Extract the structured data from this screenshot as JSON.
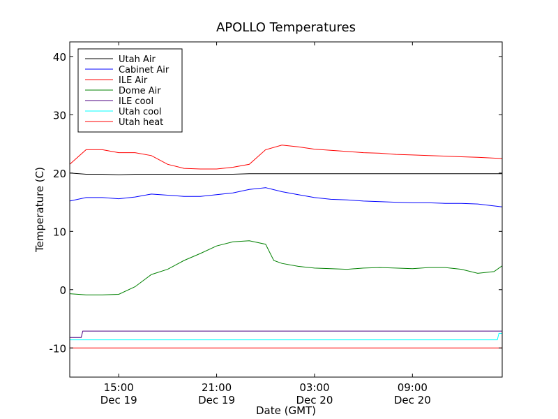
{
  "chart_data": {
    "type": "line",
    "title": "APOLLO Temperatures",
    "xlabel": "Date (GMT)",
    "ylabel": "Temperature (C)",
    "xlim": [
      12.0,
      38.5
    ],
    "ylim": [
      -15,
      42.5
    ],
    "yticks": [
      {
        "value": 40,
        "label": "40"
      },
      {
        "value": 30,
        "label": "30"
      },
      {
        "value": 20,
        "label": "20"
      },
      {
        "value": 10,
        "label": "10"
      },
      {
        "value": 0,
        "label": "0"
      },
      {
        "value": -10,
        "label": "-10"
      }
    ],
    "xticks": [
      {
        "value": 15,
        "label": "15:00",
        "sublabel": "Dec 19"
      },
      {
        "value": 21,
        "label": "21:00",
        "sublabel": "Dec 19"
      },
      {
        "value": 27,
        "label": "03:00",
        "sublabel": "Dec 20"
      },
      {
        "value": 33,
        "label": "09:00",
        "sublabel": "Dec 20"
      }
    ],
    "legend_position": "top-left",
    "series": [
      {
        "name": "Utah Air",
        "color": "#000000",
        "x": [
          12.0,
          13.0,
          14.0,
          15.0,
          16.0,
          17.0,
          18.0,
          19.0,
          20.0,
          21.0,
          22.0,
          23.0,
          24.0,
          25.0,
          26.0,
          27.0,
          28.0,
          29.0,
          30.0,
          31.0,
          32.0,
          33.0,
          34.0,
          35.0,
          36.0,
          37.0,
          38.5
        ],
        "y": [
          20.0,
          19.8,
          19.8,
          19.7,
          19.8,
          19.8,
          19.8,
          19.8,
          19.8,
          19.8,
          19.8,
          19.9,
          19.9,
          19.9,
          19.9,
          19.9,
          19.9,
          19.9,
          19.9,
          19.9,
          19.9,
          19.9,
          19.9,
          19.9,
          19.9,
          19.9,
          19.9
        ]
      },
      {
        "name": "Cabinet Air",
        "color": "#0000ff",
        "x": [
          12.0,
          13.0,
          14.0,
          15.0,
          16.0,
          17.0,
          18.0,
          19.0,
          20.0,
          21.0,
          22.0,
          23.0,
          24.0,
          25.0,
          26.0,
          27.0,
          28.0,
          29.0,
          30.0,
          31.0,
          32.0,
          33.0,
          34.0,
          35.0,
          36.0,
          37.0,
          38.5
        ],
        "y": [
          15.2,
          15.8,
          15.8,
          15.6,
          15.9,
          16.4,
          16.2,
          16.0,
          16.0,
          16.3,
          16.6,
          17.2,
          17.5,
          16.8,
          16.3,
          15.8,
          15.5,
          15.4,
          15.2,
          15.1,
          15.0,
          14.9,
          14.9,
          14.8,
          14.8,
          14.7,
          14.2
        ]
      },
      {
        "name": "ILE Air",
        "color": "#ff0000",
        "x": [
          12.0,
          13.0,
          14.0,
          15.0,
          16.0,
          17.0,
          18.0,
          19.0,
          20.0,
          21.0,
          22.0,
          23.0,
          24.0,
          25.0,
          26.0,
          27.0,
          28.0,
          29.0,
          30.0,
          31.0,
          32.0,
          33.0,
          34.0,
          35.0,
          36.0,
          37.0,
          38.5
        ],
        "y": [
          21.5,
          24.0,
          24.0,
          23.5,
          23.5,
          23.0,
          21.5,
          20.8,
          20.7,
          20.7,
          21.0,
          21.5,
          24.0,
          24.8,
          24.5,
          24.1,
          23.9,
          23.7,
          23.5,
          23.4,
          23.2,
          23.1,
          23.0,
          22.9,
          22.8,
          22.7,
          22.5
        ]
      },
      {
        "name": "Dome Air",
        "color": "#008000",
        "x": [
          12.0,
          13.0,
          14.0,
          15.0,
          16.0,
          17.0,
          18.0,
          19.0,
          20.0,
          21.0,
          22.0,
          23.0,
          24.0,
          24.5,
          25.0,
          26.0,
          27.0,
          28.0,
          29.0,
          30.0,
          31.0,
          32.0,
          33.0,
          34.0,
          35.0,
          36.0,
          37.0,
          38.0,
          38.5
        ],
        "y": [
          -0.7,
          -0.9,
          -0.9,
          -0.8,
          0.5,
          2.6,
          3.5,
          5.0,
          6.2,
          7.5,
          8.2,
          8.4,
          7.8,
          5.0,
          4.5,
          4.0,
          3.7,
          3.6,
          3.5,
          3.7,
          3.8,
          3.7,
          3.6,
          3.8,
          3.8,
          3.5,
          2.8,
          3.1,
          4.1
        ]
      },
      {
        "name": "ILE cool",
        "color": "#4b0082",
        "x": [
          12.0,
          12.7,
          12.8,
          38.5
        ],
        "y": [
          -8.2,
          -8.2,
          -7.1,
          -7.1
        ]
      },
      {
        "name": "Utah cool",
        "color": "#00ffff",
        "x": [
          12.0,
          38.2,
          38.3,
          38.5
        ],
        "y": [
          -8.6,
          -8.6,
          -7.5,
          -7.5
        ]
      },
      {
        "name": "Utah heat",
        "color": "#ff0000",
        "x": [
          12.0,
          38.5
        ],
        "y": [
          -10.0,
          -10.0
        ]
      }
    ]
  }
}
